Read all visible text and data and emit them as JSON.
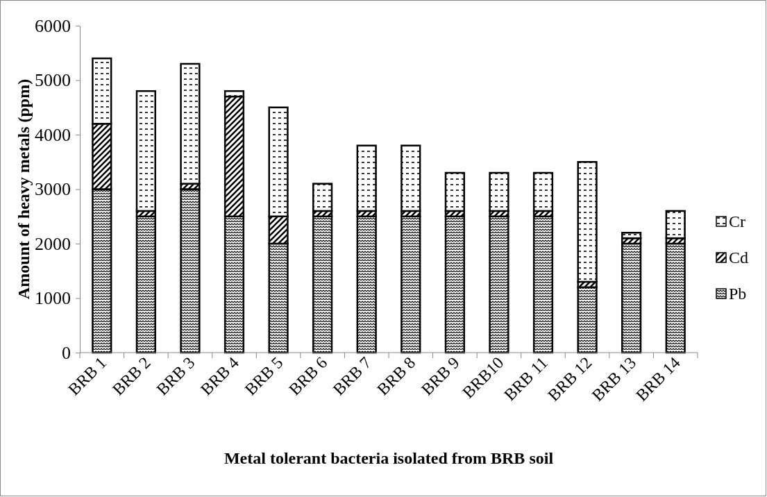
{
  "chart_data": {
    "type": "bar",
    "stacked": true,
    "xlabel": "Metal tolerant bacteria isolated from BRB soil",
    "ylabel": "Amount of heavy metals (ppm)",
    "categories": [
      "BRB 1",
      "BRB 2",
      "BRB 3",
      "BRB 4",
      "BRB 5",
      "BRB 6",
      "BRB 7",
      "BRB 8",
      "BRB 9",
      "BRB10",
      "BRB 11",
      "BRB 12",
      "BRB 13",
      "BRB 14"
    ],
    "series": [
      {
        "name": "Pb",
        "color": "#000000",
        "values": [
          3000,
          2500,
          3000,
          2500,
          2000,
          2500,
          2500,
          2500,
          2500,
          2500,
          2500,
          1200,
          2000,
          2000
        ]
      },
      {
        "name": "Cd",
        "color": "#000000",
        "values": [
          1200,
          100,
          100,
          2200,
          500,
          100,
          100,
          100,
          100,
          100,
          100,
          100,
          100,
          100
        ]
      },
      {
        "name": "Cr",
        "color": "#000000",
        "values": [
          1200,
          2200,
          2200,
          100,
          2000,
          500,
          1200,
          1200,
          700,
          700,
          700,
          2200,
          100,
          500
        ]
      }
    ],
    "ylim": [
      0,
      6000
    ],
    "yticks": [
      0,
      1000,
      2000,
      3000,
      4000,
      5000,
      6000
    ],
    "grid": false,
    "legend": "right"
  }
}
